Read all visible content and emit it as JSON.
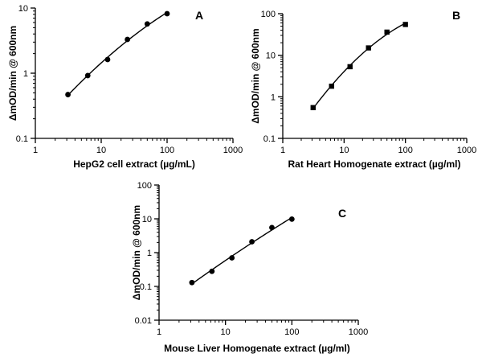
{
  "chart_data": [
    {
      "type": "scatter",
      "panel_label": "A",
      "xlabel": "HepG2 cell extract (µg/mL)",
      "ylabel": "ΔmOD/min @ 600nm",
      "x_scale": "log",
      "y_scale": "log",
      "xlim": [
        1,
        1000
      ],
      "ylim": [
        0.1,
        10
      ],
      "x_ticks": [
        "1",
        "10",
        "100",
        "1000"
      ],
      "y_ticks": [
        "0.1",
        "1",
        "10"
      ],
      "marker": "circle",
      "grid": false,
      "points": [
        {
          "x": 3.125,
          "y": 0.47
        },
        {
          "x": 6.25,
          "y": 0.92
        },
        {
          "x": 12.5,
          "y": 1.62
        },
        {
          "x": 25,
          "y": 3.3
        },
        {
          "x": 50,
          "y": 5.7
        },
        {
          "x": 100,
          "y": 8.2
        }
      ]
    },
    {
      "type": "scatter",
      "panel_label": "B",
      "xlabel": "Rat Heart Homogenate extract (µg/ml)",
      "ylabel": "ΔmOD/min @ 600nm",
      "x_scale": "log",
      "y_scale": "log",
      "xlim": [
        1,
        1000
      ],
      "ylim": [
        0.1,
        100
      ],
      "x_ticks": [
        "1",
        "10",
        "100",
        "1000"
      ],
      "y_ticks": [
        "0.1",
        "1",
        "10",
        "100"
      ],
      "marker": "square",
      "grid": false,
      "points": [
        {
          "x": 3.125,
          "y": 0.55
        },
        {
          "x": 6.25,
          "y": 1.8
        },
        {
          "x": 12.5,
          "y": 5.3
        },
        {
          "x": 25,
          "y": 15
        },
        {
          "x": 50,
          "y": 36
        },
        {
          "x": 100,
          "y": 55
        }
      ]
    },
    {
      "type": "scatter",
      "panel_label": "C",
      "xlabel": "Mouse Liver Homogenate extract (µg/ml)",
      "ylabel": "ΔmOD/min @ 600nm",
      "x_scale": "log",
      "y_scale": "log",
      "xlim": [
        1,
        1000
      ],
      "ylim": [
        0.01,
        100
      ],
      "x_ticks": [
        "1",
        "10",
        "100",
        "1000"
      ],
      "y_ticks": [
        "0.01",
        "0.1",
        "1",
        "10",
        "100"
      ],
      "marker": "circle",
      "grid": false,
      "points": [
        {
          "x": 3.125,
          "y": 0.13
        },
        {
          "x": 6.25,
          "y": 0.28
        },
        {
          "x": 12.5,
          "y": 0.7
        },
        {
          "x": 25,
          "y": 2.1
        },
        {
          "x": 50,
          "y": 5.5
        },
        {
          "x": 100,
          "y": 9.8
        }
      ]
    }
  ]
}
